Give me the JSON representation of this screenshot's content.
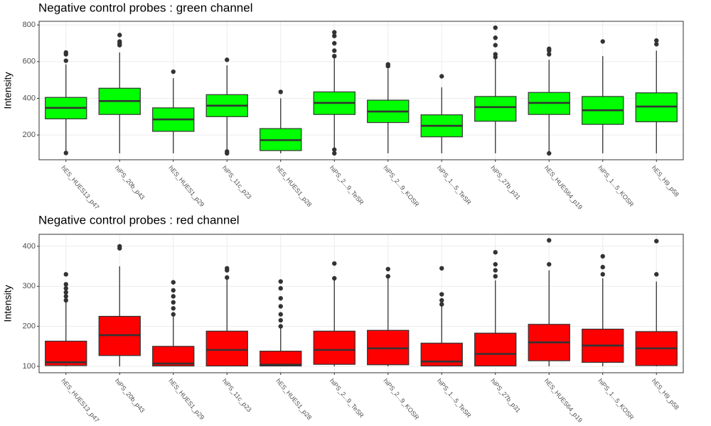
{
  "chart_data": [
    {
      "type": "box",
      "title": "Negative control probes : green channel",
      "ylabel": "Intensity",
      "color": "#00ff00",
      "grid": true,
      "categories": [
        "hES_HUES13_p47",
        "hiPS_20b_p43",
        "hES_HUES1_p29",
        "hiPS_11c_p23",
        "hES_HUES1_p28",
        "hiPS_2...9_TeSR",
        "hiPS_2...9_KOSR",
        "hiPS_1...5_TeSR",
        "hiPS_27b_p31",
        "hES_HUES64_p19",
        "hiPS_1...5_KOSR",
        "hES_H9_p58"
      ],
      "min": [
        100,
        100,
        100,
        100,
        100,
        110,
        100,
        100,
        100,
        100,
        100,
        100
      ],
      "q1": [
        288,
        312,
        220,
        300,
        115,
        312,
        268,
        190,
        275,
        312,
        258,
        272
      ],
      "median": [
        348,
        385,
        285,
        360,
        172,
        375,
        328,
        250,
        352,
        375,
        335,
        355
      ],
      "q3": [
        405,
        455,
        348,
        420,
        235,
        435,
        390,
        310,
        410,
        432,
        410,
        430
      ],
      "max": [
        585,
        650,
        510,
        580,
        400,
        620,
        560,
        460,
        615,
        610,
        630,
        660
      ],
      "outliers": [
        [
          605,
          640,
          650,
          102
        ],
        [
          690,
          700,
          710,
          745
        ],
        [
          545
        ],
        [
          610,
          100,
          110
        ],
        [
          435
        ],
        [
          630,
          660,
          700,
          740,
          760,
          100,
          120
        ],
        [
          575,
          585
        ],
        [
          520
        ],
        [
          625,
          640,
          690,
          730,
          785
        ],
        [
          640,
          660,
          670,
          100
        ],
        [
          710
        ],
        [
          695,
          715
        ]
      ],
      "ylim": [
        65,
        820
      ],
      "yticks": [
        200,
        400,
        600,
        800
      ]
    },
    {
      "type": "box",
      "title": "Negative control probes : red channel",
      "ylabel": "Intensity",
      "color": "#ff0000",
      "grid": true,
      "categories": [
        "hES_HUES13_p47",
        "hiPS_20b_p43",
        "hES_HUES1_p29",
        "hiPS_11c_p23",
        "hES_HUES1_p28",
        "hiPS_2...9_TeSR",
        "hiPS_2...9_KOSR",
        "hiPS_1...5_TeSR",
        "hiPS_27b_p31",
        "hES_HUES64_p19",
        "hiPS_1...5_KOSR",
        "hES_H9_p58"
      ],
      "min": [
        100,
        100,
        100,
        100,
        100,
        100,
        100,
        100,
        100,
        100,
        100,
        100
      ],
      "q1": [
        102,
        127,
        101,
        101,
        101,
        105,
        104,
        101,
        101,
        114,
        110,
        102
      ],
      "median": [
        110,
        178,
        107,
        141,
        104,
        141,
        145,
        112,
        131,
        160,
        152,
        145
      ],
      "q3": [
        163,
        225,
        150,
        188,
        138,
        188,
        190,
        158,
        183,
        205,
        193,
        187
      ],
      "max": [
        260,
        350,
        225,
        320,
        195,
        315,
        320,
        250,
        315,
        340,
        320,
        312
      ],
      "outliers": [
        [
          265,
          275,
          285,
          295,
          305,
          330
        ],
        [
          395,
          400
        ],
        [
          230,
          245,
          260,
          275,
          290,
          310
        ],
        [
          322,
          340,
          345
        ],
        [
          200,
          215,
          230,
          250,
          270,
          295,
          312
        ],
        [
          320,
          357
        ],
        [
          325,
          343
        ],
        [
          255,
          265,
          280,
          345
        ],
        [
          325,
          340,
          355,
          385
        ],
        [
          355,
          415
        ],
        [
          330,
          348,
          375
        ],
        [
          330,
          413
        ]
      ],
      "ylim": [
        84,
        430
      ],
      "yticks": [
        100,
        200,
        300,
        400
      ]
    }
  ]
}
